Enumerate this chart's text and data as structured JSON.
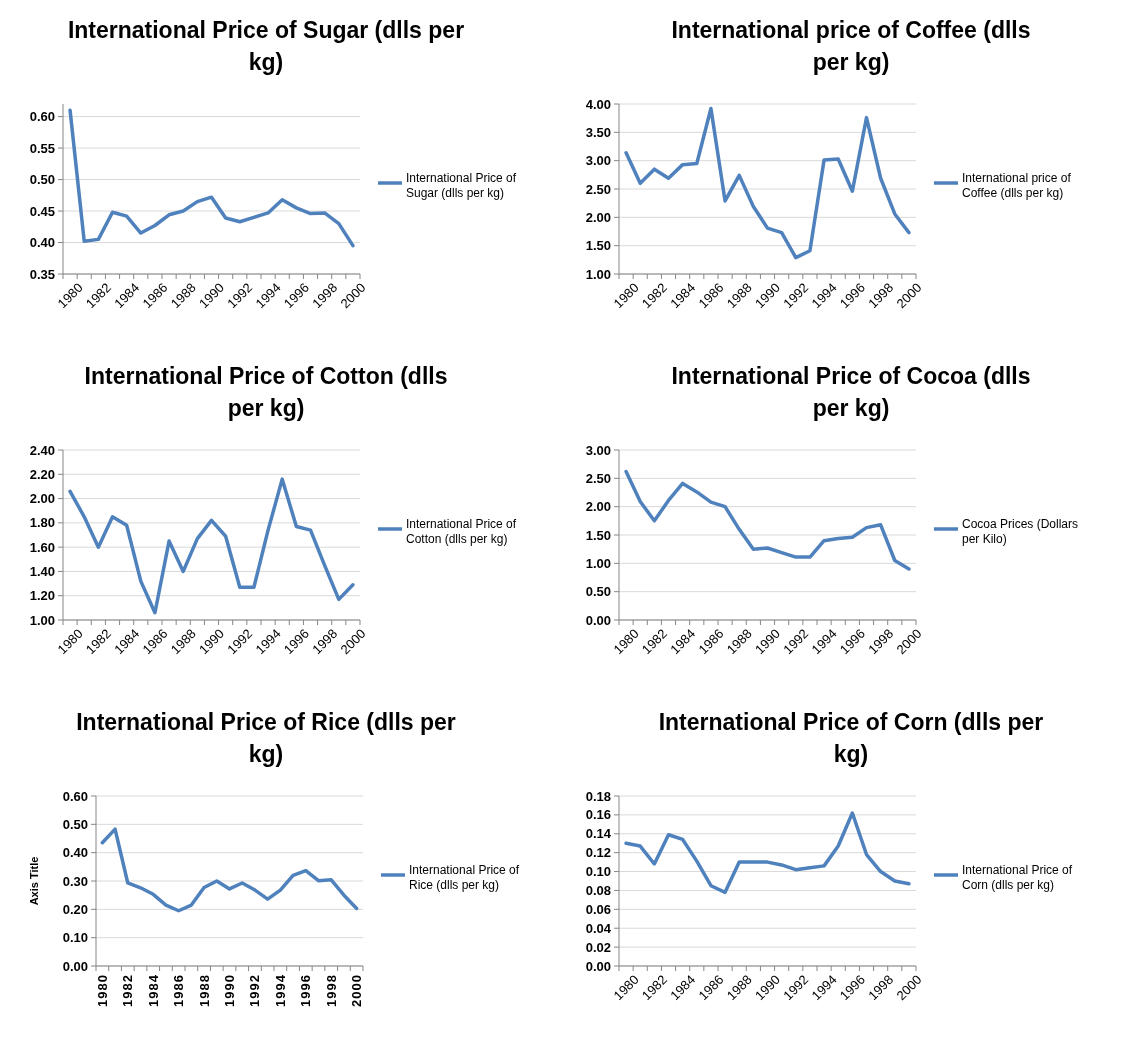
{
  "chart_data": [
    {
      "type": "line",
      "title": "International Price of Sugar (dlls per kg)",
      "categories": [
        "1980",
        null,
        "1982",
        null,
        "1984",
        null,
        "1986",
        null,
        "1988",
        null,
        "1990",
        null,
        "1992",
        null,
        "1994",
        null,
        "1996",
        null,
        "1998",
        null,
        "2000"
      ],
      "series": [
        {
          "name": "International Price of Sugar (dlls per kg)",
          "color": "#4f81bd",
          "values": [
            0.61,
            0.402,
            0.405,
            0.448,
            0.442,
            0.415,
            0.427,
            0.444,
            0.45,
            0.465,
            0.472,
            0.439,
            0.433,
            0.44,
            0.447,
            0.468,
            0.455,
            0.446,
            0.447,
            0.43,
            0.395
          ]
        }
      ],
      "ylim": [
        0.35,
        0.62
      ],
      "yticks": [
        {
          "value": 0.35,
          "label": "0.35"
        },
        {
          "value": 0.4,
          "label": "0.40"
        },
        {
          "value": 0.45,
          "label": "0.45"
        },
        {
          "value": 0.5,
          "label": "0.50"
        },
        {
          "value": 0.55,
          "label": "0.55"
        },
        {
          "value": 0.6,
          "label": "0.60"
        }
      ],
      "grid": "y",
      "legend": "right",
      "marker": "none"
    },
    {
      "type": "line",
      "title": "International price of Coffee (dlls per kg)",
      "categories": [
        "1980",
        null,
        "1982",
        null,
        "1984",
        null,
        "1986",
        null,
        "1988",
        null,
        "1990",
        null,
        "1992",
        null,
        "1994",
        null,
        "1996",
        null,
        "1998",
        null,
        "2000"
      ],
      "series": [
        {
          "name": "International price of Coffee (dlls per kg)",
          "color": "#4f81bd",
          "values": [
            3.14,
            2.6,
            2.85,
            2.69,
            2.93,
            2.95,
            3.92,
            2.29,
            2.74,
            2.19,
            1.81,
            1.73,
            1.29,
            1.41,
            3.01,
            3.03,
            2.46,
            3.76,
            2.69,
            2.06,
            1.73
          ]
        }
      ],
      "ylim": [
        1,
        4
      ],
      "yticks": [
        {
          "value": 1,
          "label": "1.00"
        },
        {
          "value": 1.5,
          "label": "1.50"
        },
        {
          "value": 2,
          "label": "2.00"
        },
        {
          "value": 2.5,
          "label": "2.50"
        },
        {
          "value": 3,
          "label": "3.00"
        },
        {
          "value": 3.5,
          "label": "3.50"
        },
        {
          "value": 4,
          "label": "4.00"
        }
      ],
      "grid": "y",
      "legend": "right",
      "marker": "none"
    },
    {
      "type": "line",
      "title": "International Price of Cotton (dlls per kg)",
      "categories": [
        "1980",
        null,
        "1982",
        null,
        "1984",
        null,
        "1986",
        null,
        "1988",
        null,
        "1990",
        null,
        "1992",
        null,
        "1994",
        null,
        "1996",
        null,
        "1998",
        null,
        "2000"
      ],
      "series": [
        {
          "name": "International Price of Cotton (dlls per kg)",
          "color": "#4f81bd",
          "values": [
            2.06,
            1.85,
            1.6,
            1.85,
            1.78,
            1.32,
            1.06,
            1.65,
            1.4,
            1.67,
            1.82,
            1.69,
            1.27,
            1.27,
            1.74,
            2.16,
            1.77,
            1.74,
            1.45,
            1.17,
            1.29
          ]
        }
      ],
      "ylim": [
        1,
        2.4
      ],
      "yticks": [
        {
          "value": 1,
          "label": "1.00"
        },
        {
          "value": 1.2,
          "label": "1.20"
        },
        {
          "value": 1.4,
          "label": "1.40"
        },
        {
          "value": 1.6,
          "label": "1.60"
        },
        {
          "value": 1.8,
          "label": "1.80"
        },
        {
          "value": 2,
          "label": "2.00"
        },
        {
          "value": 2.2,
          "label": "2.20"
        },
        {
          "value": 2.4,
          "label": "2.40"
        }
      ],
      "grid": "y",
      "legend": "right",
      "marker": "none"
    },
    {
      "type": "line",
      "title": "International Price of Cocoa (dlls per kg)",
      "categories": [
        "1980",
        null,
        "1982",
        null,
        "1984",
        null,
        "1986",
        null,
        "1988",
        null,
        "1990",
        null,
        "1992",
        null,
        "1994",
        null,
        "1996",
        null,
        "1998",
        null,
        "2000"
      ],
      "series": [
        {
          "name": "Cocoa Prices (Dollars per Kilo)",
          "color": "#4f81bd",
          "values": [
            2.62,
            2.09,
            1.75,
            2.11,
            2.41,
            2.26,
            2.08,
            2.0,
            1.6,
            1.25,
            1.27,
            1.19,
            1.11,
            1.11,
            1.4,
            1.44,
            1.46,
            1.63,
            1.68,
            1.05,
            0.9
          ]
        }
      ],
      "ylim": [
        0,
        3
      ],
      "yticks": [
        {
          "value": 0,
          "label": "0.00"
        },
        {
          "value": 0.5,
          "label": "0.50"
        },
        {
          "value": 1,
          "label": "1.00"
        },
        {
          "value": 1.5,
          "label": "1.50"
        },
        {
          "value": 2,
          "label": "2.00"
        },
        {
          "value": 2.5,
          "label": "2.50"
        },
        {
          "value": 3,
          "label": "3.00"
        }
      ],
      "grid": "y",
      "legend": "right",
      "marker": "none"
    },
    {
      "type": "line",
      "title": "International Price of Rice (dlls per kg)",
      "ylabel": "Axis Title",
      "categories": [
        "1980",
        null,
        "1982",
        null,
        "1984",
        null,
        "1986",
        null,
        "1988",
        null,
        "1990",
        null,
        "1992",
        null,
        "1994",
        null,
        "1996",
        null,
        "1998",
        null,
        "2000"
      ],
      "series": [
        {
          "name": "International Price of Rice (dlls per kg)",
          "color": "#4f81bd",
          "values": [
            0.435,
            0.483,
            0.293,
            0.276,
            0.253,
            0.215,
            0.195,
            0.215,
            0.277,
            0.3,
            0.272,
            0.293,
            0.268,
            0.236,
            0.268,
            0.32,
            0.337,
            0.301,
            0.304,
            0.25,
            0.203
          ]
        }
      ],
      "ylim": [
        0,
        0.6
      ],
      "yticks": [
        {
          "value": 0,
          "label": "0.00"
        },
        {
          "value": 0.1,
          "label": "0.10"
        },
        {
          "value": 0.2,
          "label": "0.20"
        },
        {
          "value": 0.3,
          "label": "0.30"
        },
        {
          "value": 0.4,
          "label": "0.40"
        },
        {
          "value": 0.5,
          "label": "0.50"
        },
        {
          "value": 0.6,
          "label": "0.60"
        }
      ],
      "grid": "y",
      "legend": "right",
      "marker": "none"
    },
    {
      "type": "line",
      "title": "International Price of Corn (dlls per kg)",
      "categories": [
        "1980",
        null,
        "1982",
        null,
        "1984",
        null,
        "1986",
        null,
        "1988",
        null,
        "1990",
        null,
        "1992",
        null,
        "1994",
        null,
        "1996",
        null,
        "1998",
        null,
        "2000"
      ],
      "series": [
        {
          "name": "International Price of Corn (dlls per kg)",
          "color": "#4f81bd",
          "values": [
            0.13,
            0.127,
            0.108,
            0.139,
            0.134,
            0.111,
            0.085,
            0.078,
            0.11,
            0.11,
            0.11,
            0.107,
            0.102,
            0.104,
            0.106,
            0.127,
            0.162,
            0.118,
            0.1,
            0.09,
            0.087
          ]
        }
      ],
      "ylim": [
        0,
        0.18
      ],
      "yticks": [
        {
          "value": 0,
          "label": "0.00"
        },
        {
          "value": 0.02,
          "label": "0.02"
        },
        {
          "value": 0.04,
          "label": "0.04"
        },
        {
          "value": 0.06,
          "label": "0.06"
        },
        {
          "value": 0.08,
          "label": "0.08"
        },
        {
          "value": 0.1,
          "label": "0.10"
        },
        {
          "value": 0.12,
          "label": "0.12"
        },
        {
          "value": 0.14,
          "label": "0.14"
        },
        {
          "value": 0.16,
          "label": "0.16"
        },
        {
          "value": 0.18,
          "label": "0.18"
        }
      ],
      "grid": "y",
      "legend": "right",
      "marker": "none"
    }
  ]
}
